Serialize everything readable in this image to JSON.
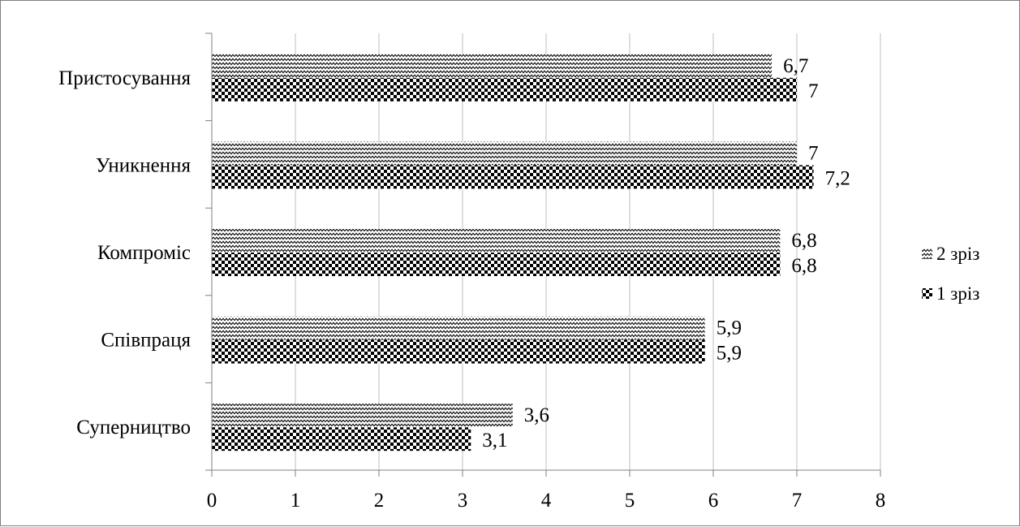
{
  "chart_data": {
    "type": "bar",
    "orientation": "horizontal",
    "categories": [
      "Суперництво",
      "Співпраця",
      "Компроміс",
      "Уникнення",
      "Пристосування"
    ],
    "series": [
      {
        "name": "1 зріз",
        "values": [
          3.1,
          5.9,
          6.8,
          7.2,
          7.0
        ],
        "labels": [
          "3,1",
          "5,9",
          "6,8",
          "7,2",
          "7"
        ]
      },
      {
        "name": "2 зріз",
        "values": [
          3.6,
          5.9,
          6.8,
          7.0,
          6.7
        ],
        "labels": [
          "3,6",
          "5,9",
          "6,8",
          "7",
          "6,7"
        ]
      }
    ],
    "xlim": [
      0,
      8
    ],
    "xticks": [
      "0",
      "1",
      "2",
      "3",
      "4",
      "5",
      "6",
      "7",
      "8"
    ],
    "title": "",
    "xlabel": "",
    "ylabel": "",
    "grid": "vertical",
    "legend_position": "right",
    "legend_order": [
      "2 зріз",
      "1 зріз"
    ]
  }
}
